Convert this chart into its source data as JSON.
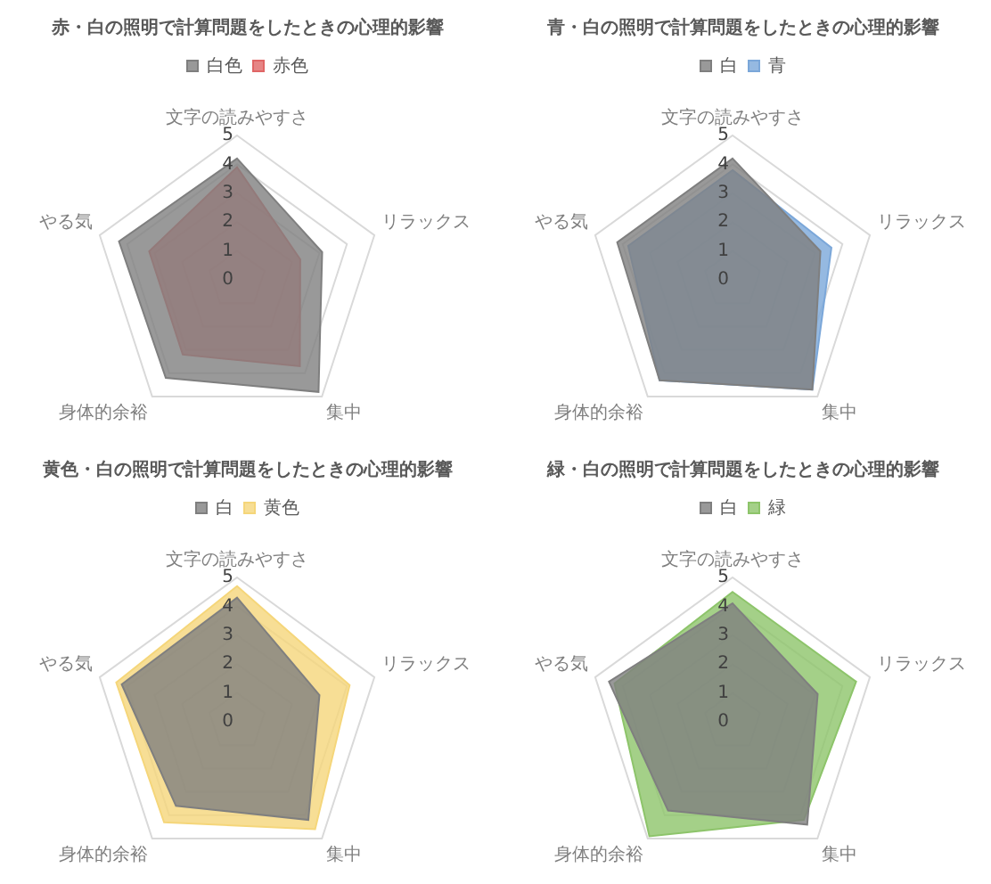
{
  "chart_data": [
    {
      "type": "radar",
      "title": "赤・白の照明で計算問題をしたときの心理的影響",
      "categories": [
        "文字の読みやすさ",
        "リラックス",
        "集中",
        "身体的余裕",
        "やる気"
      ],
      "series": [
        {
          "name": "白色",
          "color": "#7f7f7f",
          "values": [
            4.2,
            3.1,
            4.8,
            4.2,
            4.3
          ]
        },
        {
          "name": "赤色",
          "color": "#e06666",
          "values": [
            3.9,
            2.3,
            3.7,
            3.2,
            3.2
          ]
        }
      ],
      "ylim": [
        0,
        5
      ],
      "yticks": [
        0,
        1,
        2,
        3,
        4,
        5
      ],
      "grid": true,
      "legend": "top",
      "marker": "none"
    },
    {
      "type": "radar",
      "title": "青・白の照明で計算問題をしたときの心理的影響",
      "categories": [
        "文字の読みやすさ",
        "リラックス",
        "集中",
        "身体的余裕",
        "やる気"
      ],
      "series": [
        {
          "name": "白",
          "color": "#7f7f7f",
          "values": [
            4.2,
            3.2,
            4.7,
            4.3,
            4.2
          ]
        },
        {
          "name": "青",
          "color": "#7ba7d9",
          "values": [
            3.8,
            3.6,
            4.7,
            4.3,
            3.8
          ]
        }
      ],
      "ylim": [
        0,
        5
      ],
      "yticks": [
        0,
        1,
        2,
        3,
        4,
        5
      ],
      "grid": true,
      "legend": "top",
      "marker": "none"
    },
    {
      "type": "radar",
      "title": "黄色・白の照明で計算問題をしたときの心理的影響",
      "categories": [
        "文字の読みやすさ",
        "リラックス",
        "集中",
        "身体的余裕",
        "やる気"
      ],
      "series": [
        {
          "name": "白",
          "color": "#7f7f7f",
          "values": [
            4.3,
            3.0,
            4.2,
            3.6,
            4.2
          ]
        },
        {
          "name": "黄色",
          "color": "#f5d67a",
          "values": [
            4.7,
            4.1,
            4.6,
            4.3,
            4.4
          ]
        }
      ],
      "ylim": [
        0,
        5
      ],
      "yticks": [
        0,
        1,
        2,
        3,
        4,
        5
      ],
      "grid": true,
      "legend": "top",
      "marker": "none"
    },
    {
      "type": "radar",
      "title": "緑・白の照明で計算問題をしたときの心理的影響",
      "categories": [
        "文字の読みやすさ",
        "リラックス",
        "集中",
        "身体的余裕",
        "やる気"
      ],
      "series": [
        {
          "name": "白",
          "color": "#7f7f7f",
          "values": [
            4.1,
            3.1,
            4.4,
            3.8,
            4.5
          ]
        },
        {
          "name": "緑",
          "color": "#8dc46a",
          "values": [
            4.5,
            4.5,
            4.2,
            4.9,
            4.3
          ]
        }
      ],
      "ylim": [
        0,
        5
      ],
      "yticks": [
        0,
        1,
        2,
        3,
        4,
        5
      ],
      "grid": true,
      "legend": "top",
      "marker": "none"
    }
  ]
}
